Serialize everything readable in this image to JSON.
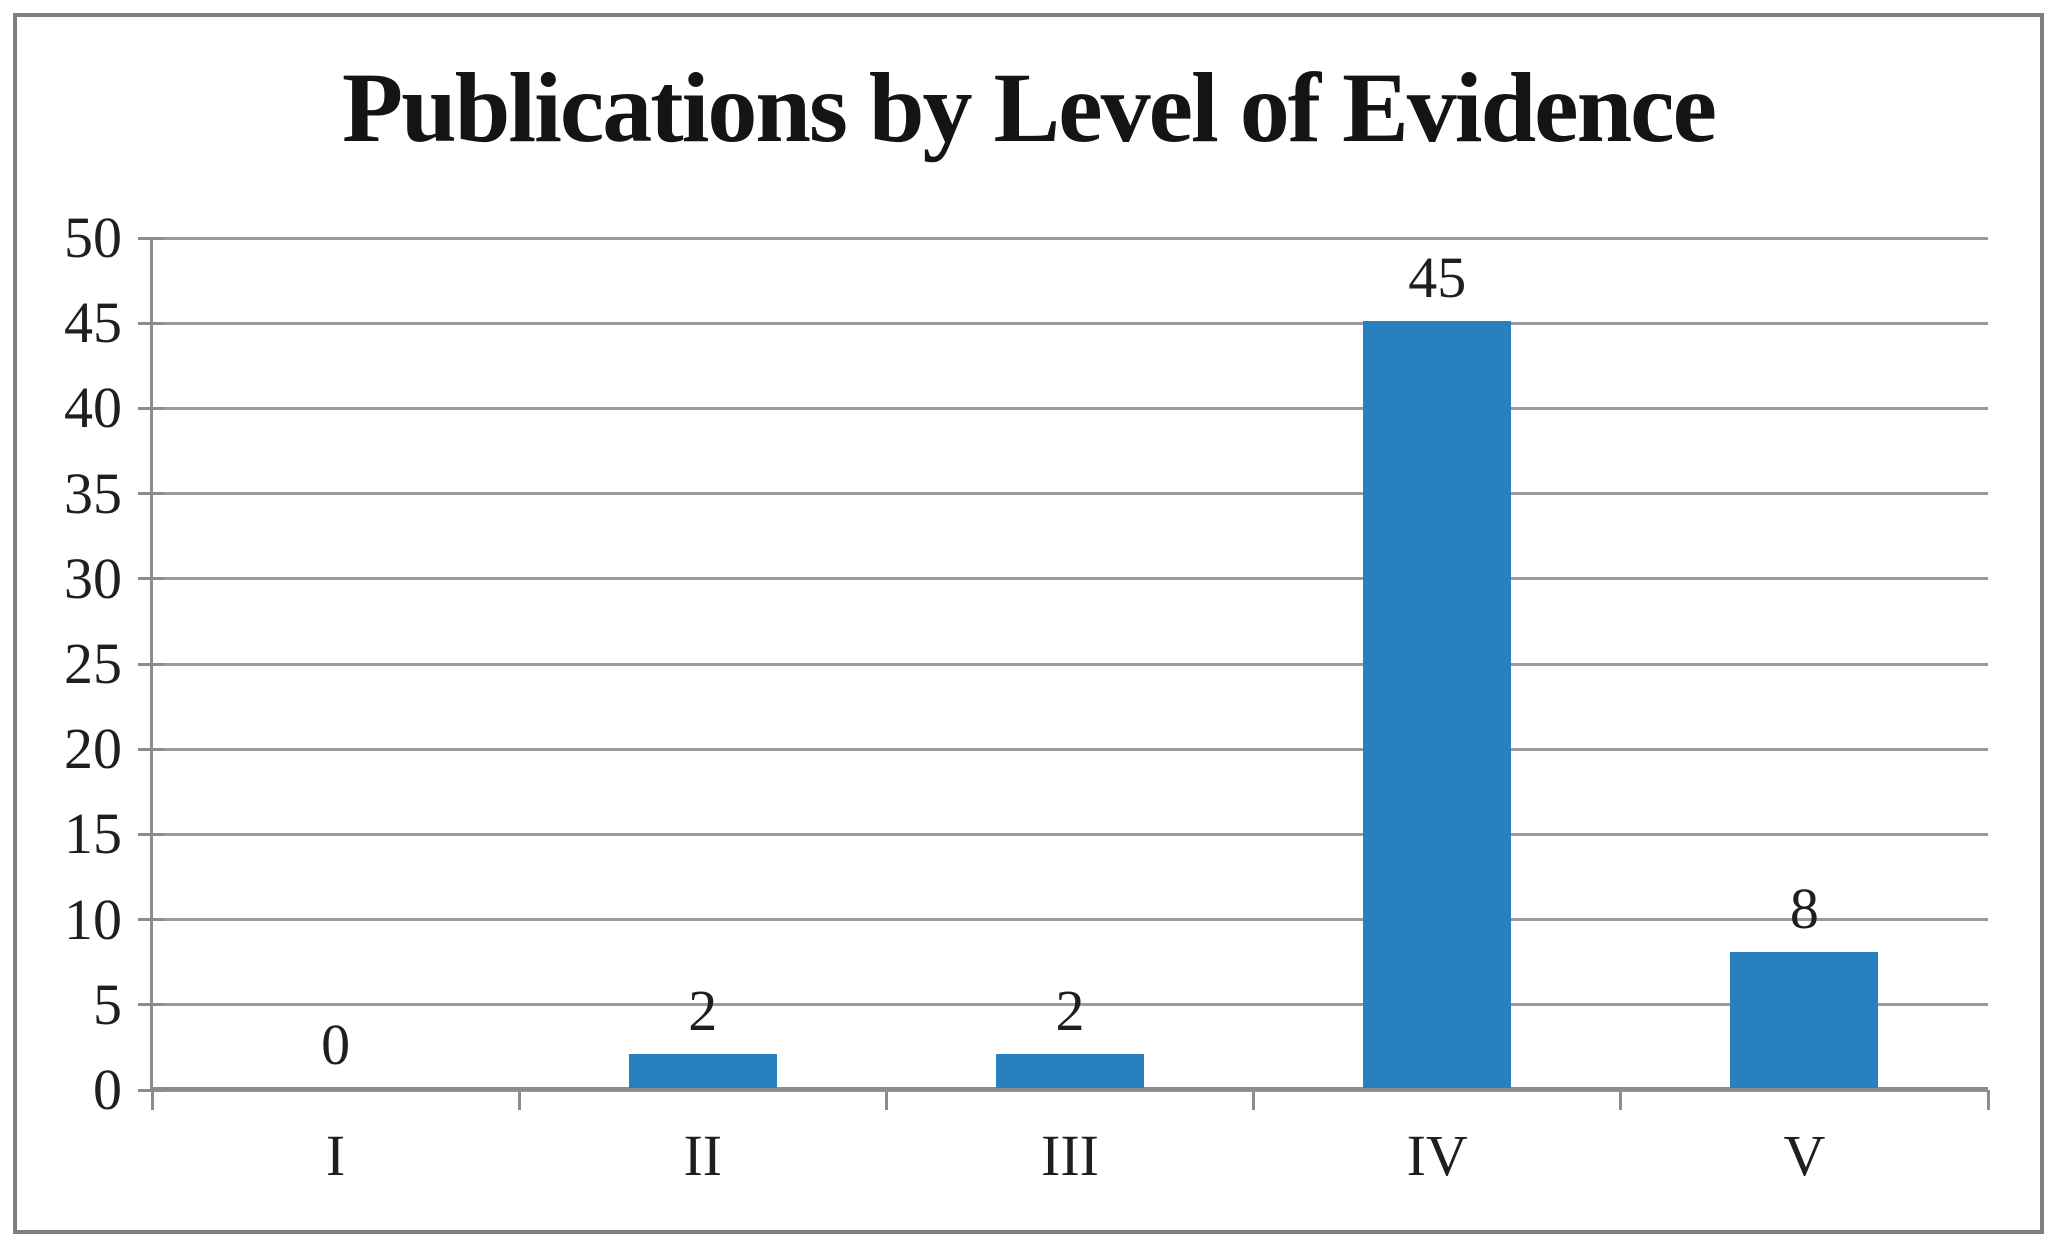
{
  "chart_data": {
    "type": "bar",
    "title": "Publications by Level of Evidence",
    "categories": [
      "I",
      "II",
      "III",
      "IV",
      "V"
    ],
    "values": [
      0,
      2,
      2,
      45,
      8
    ],
    "data_labels": [
      "0",
      "2",
      "2",
      "45",
      "8"
    ],
    "xlabel": "",
    "ylabel": "",
    "ylim": [
      0,
      50
    ],
    "yticks": [
      0,
      5,
      10,
      15,
      20,
      25,
      30,
      35,
      40,
      45,
      50
    ],
    "grid": "horizontal",
    "legend_position": "none",
    "colors": {
      "bar_fill": "#2980BF",
      "gridline": "#9A9A9A",
      "axis": "#8C8C8C",
      "outer_border": "#7F7F7F",
      "text": "#1A1A1A",
      "background": "#FFFFFF"
    }
  }
}
